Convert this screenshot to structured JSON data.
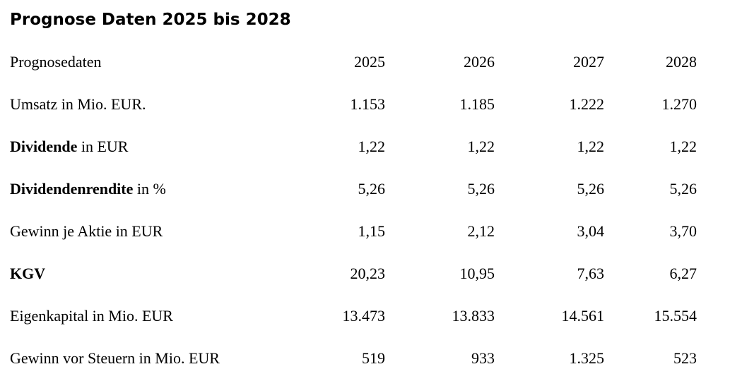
{
  "page": {
    "title": "Prognose Daten 2025 bis 2028",
    "background_color": "#ffffff",
    "text_color": "#000000"
  },
  "table": {
    "header": {
      "label": "Prognosedaten",
      "years": [
        "2025",
        "2026",
        "2027",
        "2028"
      ]
    },
    "rows": [
      {
        "label_bold": "",
        "label_rest": "Umsatz in Mio. EUR.",
        "values": [
          "1.153",
          "1.185",
          "1.222",
          "1.270"
        ]
      },
      {
        "label_bold": "Dividende",
        "label_rest": " in EUR",
        "values": [
          "1,22",
          "1,22",
          "1,22",
          "1,22"
        ]
      },
      {
        "label_bold": "Dividendenrendite",
        "label_rest": " in %",
        "values": [
          "5,26",
          "5,26",
          "5,26",
          "5,26"
        ]
      },
      {
        "label_bold": "",
        "label_rest": "Gewinn je Aktie in EUR",
        "values": [
          "1,15",
          "2,12",
          "3,04",
          "3,70"
        ]
      },
      {
        "label_bold": "KGV",
        "label_rest": "",
        "values": [
          "20,23",
          "10,95",
          "7,63",
          "6,27"
        ]
      },
      {
        "label_bold": "",
        "label_rest": "Eigenkapital in Mio. EUR",
        "values": [
          "13.473",
          "13.833",
          "14.561",
          "15.554"
        ]
      },
      {
        "label_bold": "",
        "label_rest": "Gewinn vor Steuern in Mio. EUR",
        "values": [
          "519",
          "933",
          "1.325",
          "523"
        ]
      }
    ]
  }
}
